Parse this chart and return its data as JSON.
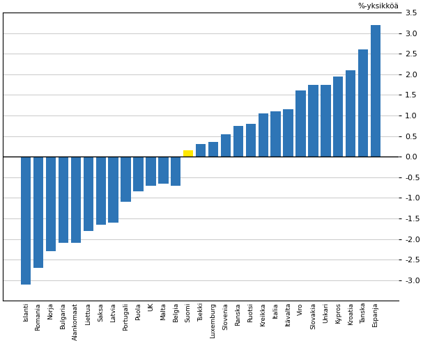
{
  "categories": [
    "Islanti",
    "Romania",
    "Norja",
    "Bulgaria",
    "Alankomaat",
    "Liettua",
    "Saksa",
    "Latvia",
    "Portugali",
    "Puola",
    "UK",
    "Malta",
    "Belgia",
    "Suomi",
    "Tsekki",
    "Luxemburg",
    "Slovenia",
    "Ranska",
    "Ruotsi",
    "Kreikka",
    "Italia",
    "Itävalta",
    "Viro",
    "Slovakia",
    "Unkari",
    "Kypros",
    "Kroatia",
    "Tanska",
    "Espanja"
  ],
  "values": [
    -3.1,
    -2.7,
    -2.3,
    -2.1,
    -2.1,
    -1.8,
    -1.65,
    -1.6,
    -1.1,
    -0.85,
    -0.7,
    -0.65,
    -0.7,
    0.15,
    0.3,
    0.35,
    0.55,
    0.75,
    0.8,
    1.05,
    1.1,
    1.15,
    1.6,
    1.75,
    1.75,
    1.95,
    2.1,
    2.6,
    3.2
  ],
  "colors": [
    "#2E75B6",
    "#2E75B6",
    "#2E75B6",
    "#2E75B6",
    "#2E75B6",
    "#2E75B6",
    "#2E75B6",
    "#2E75B6",
    "#2E75B6",
    "#2E75B6",
    "#2E75B6",
    "#2E75B6",
    "#2E75B6",
    "#FFE800",
    "#2E75B6",
    "#2E75B6",
    "#2E75B6",
    "#2E75B6",
    "#2E75B6",
    "#2E75B6",
    "#2E75B6",
    "#2E75B6",
    "#2E75B6",
    "#2E75B6",
    "#2E75B6",
    "#2E75B6",
    "#2E75B6",
    "#2E75B6",
    "#2E75B6"
  ],
  "ylabel": "%-yksikköä",
  "ylim": [
    -3.5,
    3.5
  ],
  "yticks": [
    -3.0,
    -2.5,
    -2.0,
    -1.5,
    -1.0,
    -0.5,
    0.0,
    0.5,
    1.0,
    1.5,
    2.0,
    2.5,
    3.0,
    3.5
  ],
  "background_color": "#ffffff",
  "grid_color": "#c0c0c0"
}
